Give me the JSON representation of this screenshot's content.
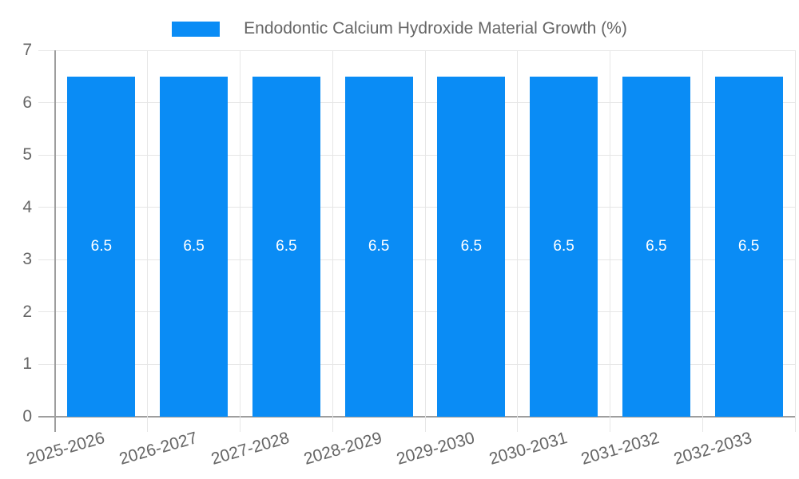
{
  "chart_data": {
    "type": "bar",
    "title": "Endodontic Calcium Hydroxide Material Growth (%)",
    "legend": {
      "position": "top",
      "label": "Endodontic Calcium Hydroxide Material Growth (%)"
    },
    "categories": [
      "2025-2026",
      "2026-2027",
      "2027-2028",
      "2028-2029",
      "2029-2030",
      "2030-2031",
      "2031-2032",
      "2032-2033"
    ],
    "values": [
      6.5,
      6.5,
      6.5,
      6.5,
      6.5,
      6.5,
      6.5,
      6.5
    ],
    "bar_value_labels": [
      "6.5",
      "6.5",
      "6.5",
      "6.5",
      "6.5",
      "6.5",
      "6.5",
      "6.5"
    ],
    "xlabel": "",
    "ylabel": "",
    "ylim": [
      0,
      7
    ],
    "yticks": [
      0,
      1,
      2,
      3,
      4,
      5,
      6,
      7
    ],
    "grid": true,
    "colors": {
      "bar": "#0a8cf5",
      "bar_value_label": "#ffffff",
      "grid_light": "#e6e6e6",
      "axis_line": "#9e9e9e",
      "tick_label": "#666666",
      "legend_text": "#666666"
    }
  }
}
